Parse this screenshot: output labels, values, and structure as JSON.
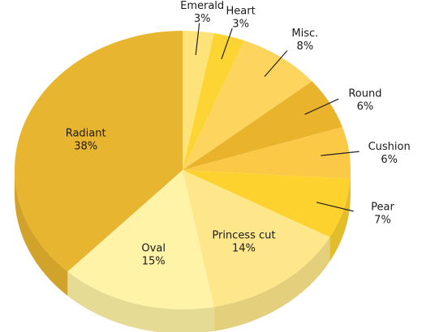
{
  "chart_data": {
    "type": "pie",
    "categories": [
      "Emerald",
      "Heart",
      "Misc.",
      "Round",
      "Cushion",
      "Pear",
      "Princess cut",
      "Oval",
      "Radiant"
    ],
    "values": [
      3,
      3,
      8,
      6,
      6,
      7,
      14,
      15,
      38
    ],
    "value_labels": [
      "3%",
      "3%",
      "8%",
      "6%",
      "6%",
      "7%",
      "14%",
      "15%",
      "38%"
    ],
    "colors": [
      "#fde37a",
      "#fcd535",
      "#fcd45e",
      "#e9b42c",
      "#fcc947",
      "#fdd22f",
      "#fde78a",
      "#fef3a6",
      "#e8b530"
    ]
  }
}
